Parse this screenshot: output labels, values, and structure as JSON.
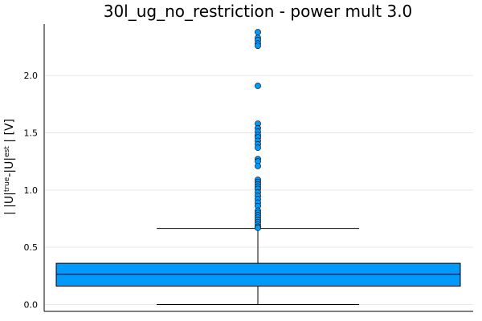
{
  "chart_data": {
    "type": "box",
    "title": "30l_ug_no_restriction - power mult 3.0",
    "ylabel": {
      "prefix": "| |U|",
      "sup1": "true",
      "middle": "-|U|",
      "sup2": "est",
      "suffix": " | [V]"
    },
    "xlabel": "",
    "ylim": [
      -0.06,
      2.45
    ],
    "yticks": [
      0.0,
      0.5,
      1.0,
      1.5,
      2.0
    ],
    "ytick_labels": [
      "0.0",
      "0.5",
      "1.0",
      "1.5",
      "2.0"
    ],
    "grid": true,
    "box": {
      "min": 0.0,
      "q1": 0.16,
      "median": 0.265,
      "q3": 0.36,
      "max": 0.665,
      "fill": "#009AFA"
    },
    "outliers": [
      2.38,
      2.33,
      2.31,
      2.28,
      2.26,
      1.91,
      1.58,
      1.54,
      1.51,
      1.48,
      1.46,
      1.43,
      1.4,
      1.37,
      1.27,
      1.25,
      1.21,
      1.09,
      1.07,
      1.05,
      1.03,
      1.01,
      0.98,
      0.95,
      0.92,
      0.89,
      0.86,
      0.82,
      0.8,
      0.78,
      0.76,
      0.74,
      0.72,
      0.7,
      0.68,
      0.67
    ]
  }
}
